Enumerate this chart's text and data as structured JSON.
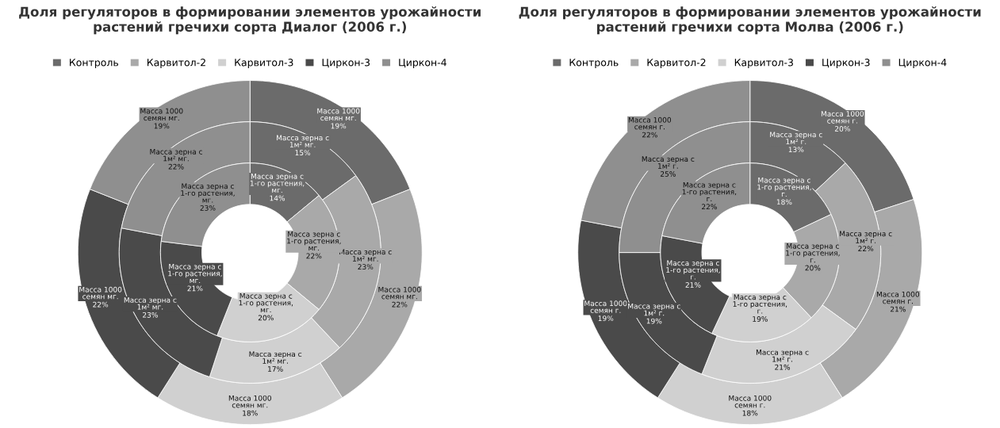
{
  "chart_data": [
    {
      "type": "donut",
      "title": "Доля регуляторов в формировании элементов урожайности растений гречихи сорта Диалог (2006 г.)",
      "categories": [
        "Контроль",
        "Карвитол-2",
        "Карвитол-3",
        "Циркон-3",
        "Циркон-4"
      ],
      "colors": [
        "#6b6b6b",
        "#a9a9a9",
        "#d0d0d0",
        "#4a4a4a",
        "#8f8f8f"
      ],
      "legend": "top",
      "series": [
        {
          "name": "Масса 1000 семян мг.",
          "values": [
            19,
            22,
            18,
            22,
            19
          ],
          "value_labels": [
            "19%",
            "22%",
            "18%",
            "22%",
            "19%"
          ]
        },
        {
          "name": "Масса зерна с 1м² мг.",
          "values": [
            15,
            23,
            17,
            23,
            22
          ],
          "value_labels": [
            "15%",
            "23%",
            "17%",
            "23%",
            "22%"
          ]
        },
        {
          "name": "Масса зерна с 1-го растения, мг.",
          "values": [
            14,
            22,
            20,
            21,
            23
          ],
          "value_labels": [
            "14%",
            "22%",
            "20%",
            "21%",
            "23%"
          ]
        }
      ]
    },
    {
      "type": "donut",
      "title": "Доля регуляторов в формировании элементов урожайности растений гречихи сорта Молва (2006 г.)",
      "categories": [
        "Контроль",
        "Карвитол-2",
        "Карвитол-3",
        "Циркон-3",
        "Циркон-4"
      ],
      "colors": [
        "#6b6b6b",
        "#a9a9a9",
        "#d0d0d0",
        "#4a4a4a",
        "#8f8f8f"
      ],
      "legend": "top",
      "series": [
        {
          "name": "Масса 1000 семян г.",
          "values": [
            20,
            21,
            18,
            19,
            22
          ],
          "value_labels": [
            "20%",
            "21%",
            "18%",
            "19%",
            "22%"
          ]
        },
        {
          "name": "Масса зерна с 1м² г.",
          "values": [
            13,
            22,
            21,
            19,
            25
          ],
          "value_labels": [
            "13%",
            "22%",
            "21%",
            "19%",
            "25%"
          ]
        },
        {
          "name": "Масса зерна с 1-го растения, г.",
          "values": [
            18,
            20,
            19,
            21,
            22
          ],
          "value_labels": [
            "18%",
            "20%",
            "19%",
            "21%",
            "22%"
          ]
        }
      ]
    }
  ]
}
